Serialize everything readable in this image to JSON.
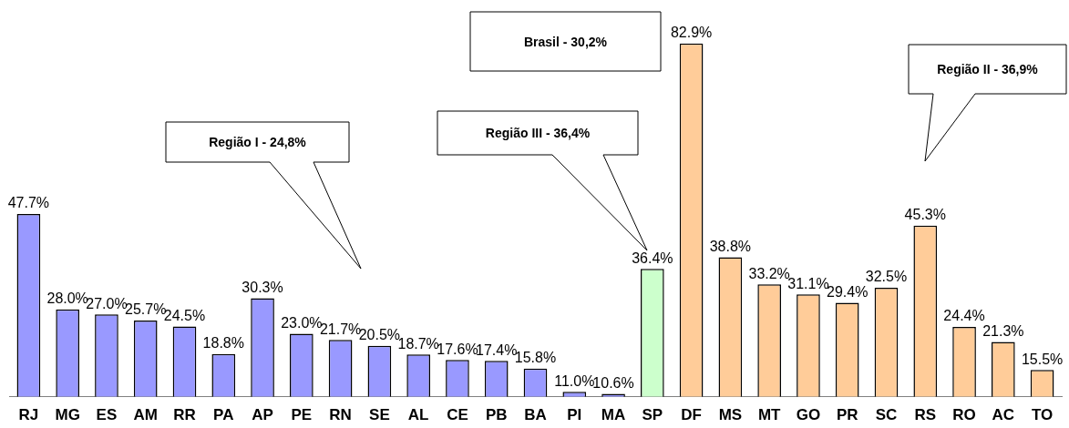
{
  "chart_data": {
    "type": "bar",
    "categories": [
      "RJ",
      "MG",
      "ES",
      "AM",
      "RR",
      "PA",
      "AP",
      "PE",
      "RN",
      "SE",
      "AL",
      "CE",
      "PB",
      "BA",
      "PI",
      "MA",
      "SP",
      "DF",
      "MS",
      "MT",
      "GO",
      "PR",
      "SC",
      "RS",
      "RO",
      "AC",
      "TO"
    ],
    "values": [
      47.7,
      28.0,
      27.0,
      25.7,
      24.5,
      18.8,
      30.3,
      23.0,
      21.7,
      20.5,
      18.7,
      17.6,
      17.4,
      15.8,
      11.0,
      10.6,
      36.4,
      82.9,
      38.8,
      33.2,
      31.1,
      29.4,
      32.5,
      45.3,
      24.4,
      21.3,
      15.5
    ],
    "value_labels": [
      "47.7%",
      "28.0%",
      "27.0%",
      "25.7%",
      "24.5%",
      "18.8%",
      "30.3%",
      "23.0%",
      "21.7%",
      "20.5%",
      "18.7%",
      "17.6%",
      "17.4%",
      "15.8%",
      "11.0%",
      "10.6%",
      "36.4%",
      "82.9%",
      "38.8%",
      "33.2%",
      "31.1%",
      "29.4%",
      "32.5%",
      "45.3%",
      "24.4%",
      "21.3%",
      "15.5%"
    ],
    "colors": [
      "#9999ff",
      "#9999ff",
      "#9999ff",
      "#9999ff",
      "#9999ff",
      "#9999ff",
      "#9999ff",
      "#9999ff",
      "#9999ff",
      "#9999ff",
      "#9999ff",
      "#9999ff",
      "#9999ff",
      "#9999ff",
      "#9999ff",
      "#9999ff",
      "#ccffcc",
      "#ffcc99",
      "#ffcc99",
      "#ffcc99",
      "#ffcc99",
      "#ffcc99",
      "#ffcc99",
      "#ffcc99",
      "#ffcc99",
      "#ffcc99",
      "#ffcc99"
    ],
    "ylim": [
      10,
      90
    ],
    "tick_labels": "x",
    "annotations": [
      "Região I - 24,8%",
      "Brasil - 30,2%",
      "Região III - 36,4%",
      "Região II - 36,9%"
    ]
  }
}
